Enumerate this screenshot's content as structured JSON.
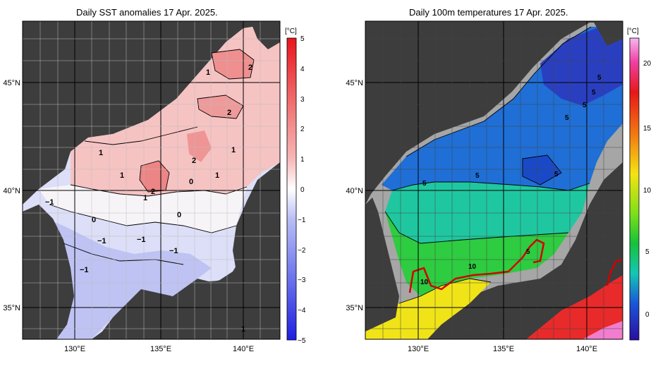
{
  "left_panel": {
    "title": "Daily SST anomalies 17 Apr. 2025.",
    "unit": "[°C]",
    "colorbar_ticks": [
      "5",
      "4",
      "3",
      "2",
      "1",
      "0",
      "−1",
      "−2",
      "−3",
      "−4",
      "−5"
    ],
    "lat_labels": [
      "45°N",
      "40°N",
      "35°N"
    ],
    "lon_labels": [
      "130°E",
      "135°E",
      "140°E"
    ],
    "contour_labels": [
      "1",
      "2",
      "2",
      "2",
      "1",
      "1",
      "1",
      "2",
      "1",
      "1",
      "0",
      "0",
      "−1",
      "0",
      "−1",
      "−1",
      "−1",
      "−1",
      "1",
      "1"
    ]
  },
  "right_panel": {
    "title": "Daily 100m temperatures 17 Apr. 2025.",
    "unit": "[°C]",
    "colorbar_ticks": [
      "20",
      "15",
      "10",
      "5",
      "0"
    ],
    "lat_labels": [
      "45°N",
      "40°N",
      "35°N"
    ],
    "lon_labels": [
      "130°E",
      "135°E",
      "140°E"
    ],
    "contour_labels": [
      "5",
      "5",
      "5",
      "5",
      "5",
      "5",
      "5",
      "5",
      "10",
      "10"
    ]
  },
  "colors": {
    "land": "#3d3d3d",
    "shelf": "#a6a6a6",
    "anomaly_pos": "#e34a4a",
    "anomaly_neg": "#4a56e3",
    "front_line": "#d40000"
  }
}
